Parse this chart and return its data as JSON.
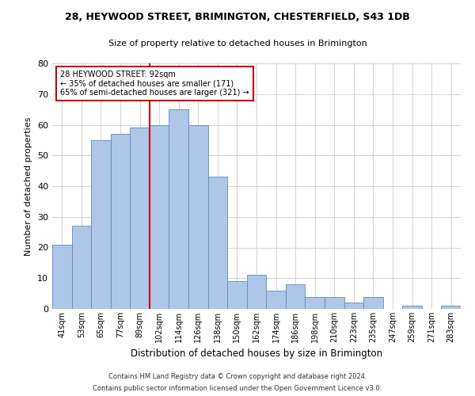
{
  "title": "28, HEYWOOD STREET, BRIMINGTON, CHESTERFIELD, S43 1DB",
  "subtitle": "Size of property relative to detached houses in Brimington",
  "xlabel": "Distribution of detached houses by size in Brimington",
  "ylabel": "Number of detached properties",
  "bar_values": [
    21,
    27,
    55,
    57,
    59,
    60,
    65,
    60,
    43,
    9,
    11,
    6,
    8,
    4,
    4,
    2,
    4,
    0,
    1,
    0,
    1
  ],
  "bin_labels": [
    "41sqm",
    "53sqm",
    "65sqm",
    "77sqm",
    "89sqm",
    "102sqm",
    "114sqm",
    "126sqm",
    "138sqm",
    "150sqm",
    "162sqm",
    "174sqm",
    "186sqm",
    "198sqm",
    "210sqm",
    "223sqm",
    "235sqm",
    "247sqm",
    "259sqm",
    "271sqm",
    "283sqm"
  ],
  "bar_color": "#aec6e8",
  "bar_edge_color": "#5b8db8",
  "highlight_line_index": 4,
  "highlight_line_color": "#cc0000",
  "annotation_text": "28 HEYWOOD STREET: 92sqm\n← 35% of detached houses are smaller (171)\n65% of semi-detached houses are larger (321) →",
  "annotation_box_color": "#ffffff",
  "annotation_box_edge_color": "#cc0000",
  "ylim": [
    0,
    80
  ],
  "yticks": [
    0,
    10,
    20,
    30,
    40,
    50,
    60,
    70,
    80
  ],
  "footer_line1": "Contains HM Land Registry data © Crown copyright and database right 2024.",
  "footer_line2": "Contains public sector information licensed under the Open Government Licence v3.0.",
  "background_color": "#ffffff",
  "grid_color": "#cccccc",
  "title_fontsize": 9,
  "subtitle_fontsize": 8,
  "ylabel_fontsize": 8,
  "xlabel_fontsize": 8.5,
  "tick_fontsize": 7,
  "annotation_fontsize": 7,
  "footer_fontsize": 6
}
